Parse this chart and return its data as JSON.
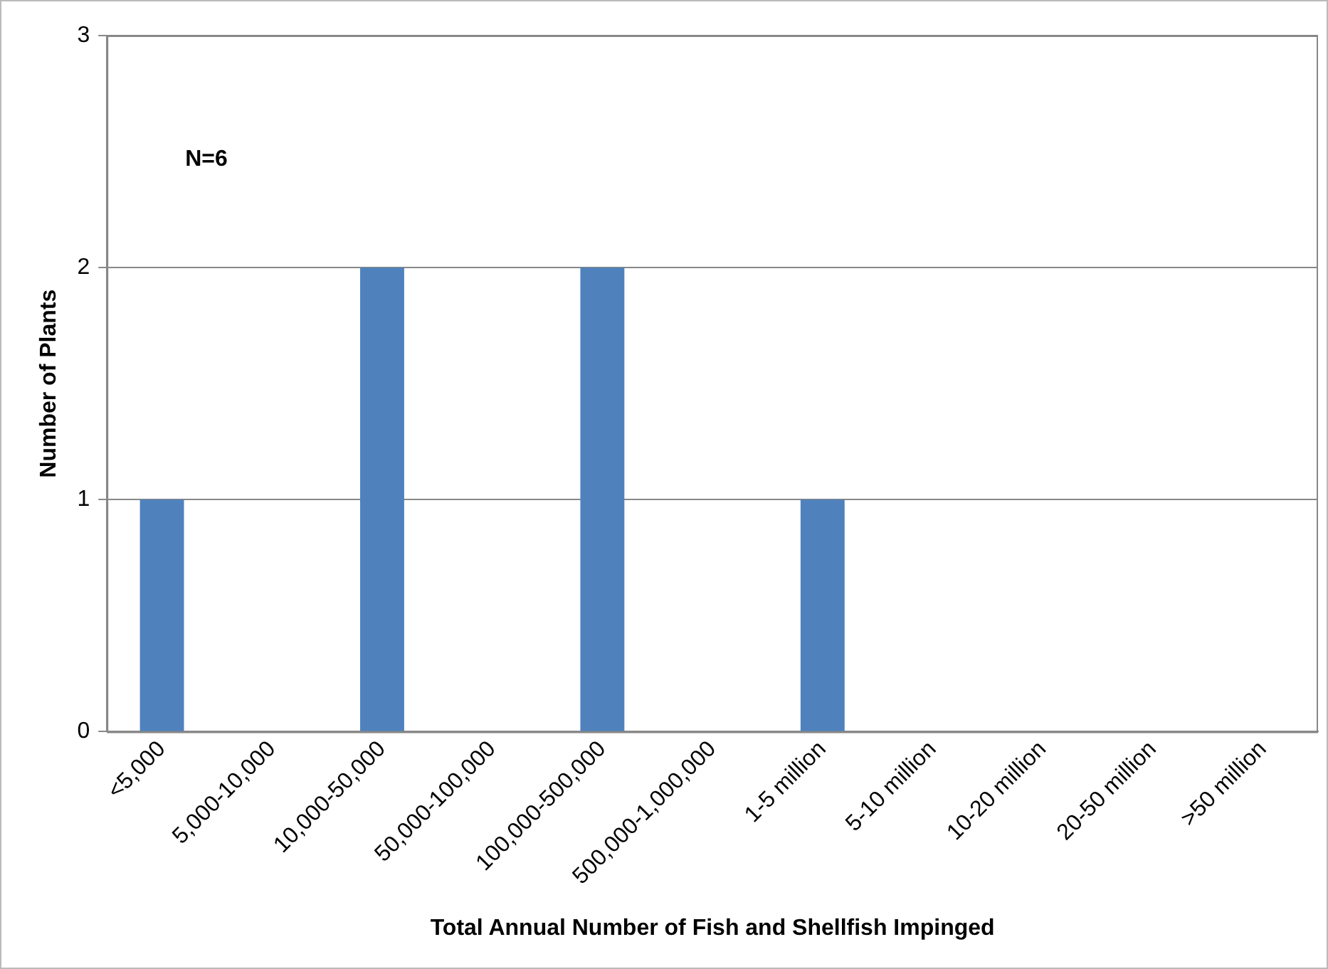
{
  "chart_data": {
    "type": "bar",
    "xlabel": "Total Annual Number of Fish and Shellfish Impinged",
    "ylabel": "Number of Plants",
    "categories": [
      "<5,000",
      "5,000-10,000",
      "10,000-50,000",
      "50,000-100,000",
      "100,000-500,000",
      "500,000-1,000,000",
      "1-5 million",
      "5-10 million",
      "10-20 million",
      "20-50 million",
      ">50 million"
    ],
    "values": [
      1,
      0,
      2,
      0,
      2,
      0,
      1,
      0,
      0,
      0,
      0
    ],
    "color": "#4f81bd",
    "ylim": [
      0,
      3
    ],
    "yticks": [
      0,
      1,
      2,
      3
    ],
    "grid": "y",
    "legend": false,
    "annotations": [
      "N=6"
    ]
  }
}
